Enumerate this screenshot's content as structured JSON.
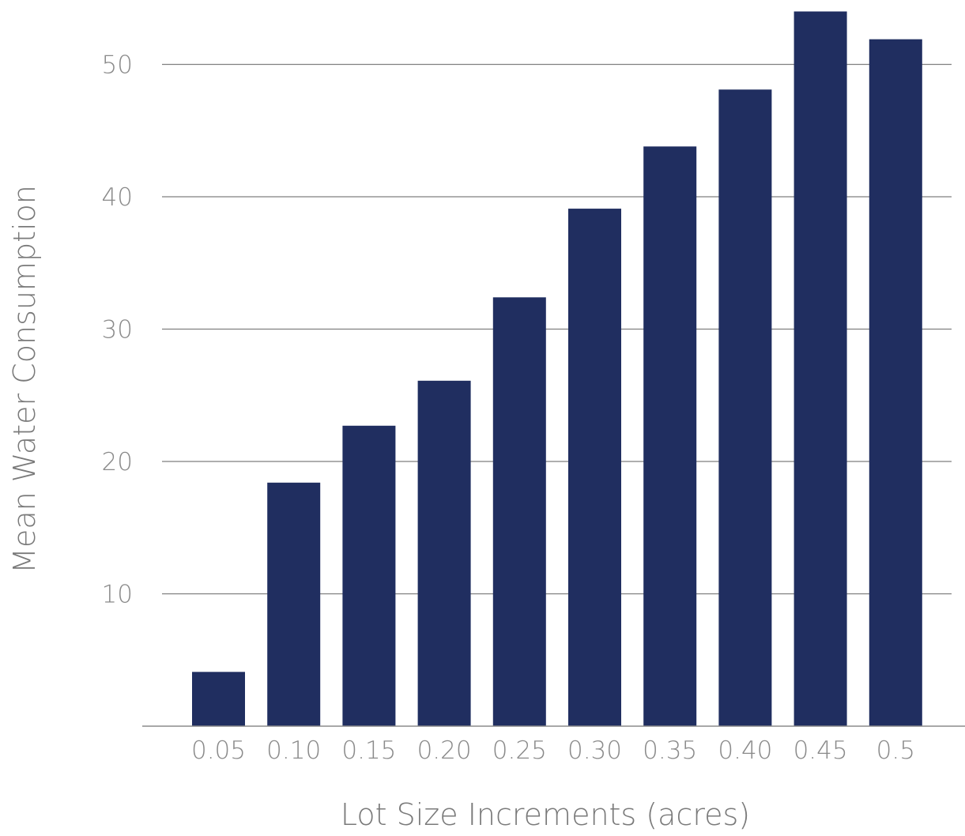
{
  "chart_data": {
    "type": "bar",
    "title": "",
    "xlabel": "Lot Size Increments (acres)",
    "ylabel": "Mean Water Consumption",
    "categories": [
      "0.05",
      "0.10",
      "0.15",
      "0.20",
      "0.25",
      "0.30",
      "0.35",
      "0.40",
      "0.45",
      "0.5"
    ],
    "values": [
      4.1,
      18.4,
      22.7,
      26.1,
      32.4,
      39.1,
      43.8,
      48.1,
      54.0,
      51.9
    ],
    "ylim": [
      0,
      55
    ],
    "yticks": [
      10,
      20,
      30,
      40,
      50
    ],
    "grid": "horizontal",
    "bar_color": "#202e60",
    "grid_color": "#7f7f7f",
    "text_color": "#8a8a8a"
  }
}
